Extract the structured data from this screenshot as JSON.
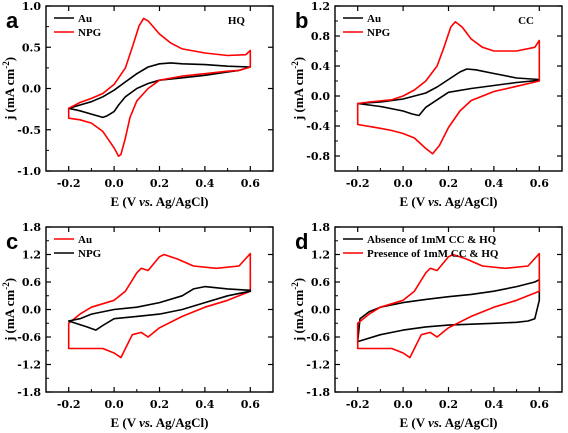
{
  "chart_data": [
    {
      "type": "line",
      "panel": "a",
      "corner_label": "HQ",
      "xlabel": "E (V vs. Ag/AgCl)",
      "ylabel": "j (mA cm-2)",
      "xlim": [
        -0.3,
        0.7
      ],
      "ylim": [
        -1.0,
        1.0
      ],
      "xticks": [
        -0.2,
        0.0,
        0.2,
        0.4,
        0.6
      ],
      "yticks": [
        -1.0,
        -0.5,
        0.0,
        0.5,
        1.0
      ],
      "x_tick_labels": [
        "-0.2",
        "0.0",
        "0.2",
        "0.4",
        "0.6"
      ],
      "y_tick_labels": [
        "-1.0",
        "-0.5",
        "0.0",
        "0.5",
        "1.0"
      ],
      "legend_position": "top-left",
      "series": [
        {
          "name": "Au",
          "color": "#000000",
          "points": [
            [
              -0.2,
              -0.24
            ],
            [
              -0.15,
              -0.2
            ],
            [
              -0.1,
              -0.16
            ],
            [
              -0.05,
              -0.1
            ],
            [
              0.0,
              -0.02
            ],
            [
              0.05,
              0.08
            ],
            [
              0.1,
              0.18
            ],
            [
              0.15,
              0.26
            ],
            [
              0.2,
              0.3
            ],
            [
              0.25,
              0.31
            ],
            [
              0.3,
              0.3
            ],
            [
              0.4,
              0.29
            ],
            [
              0.5,
              0.27
            ],
            [
              0.6,
              0.26
            ],
            [
              0.55,
              0.22
            ],
            [
              0.5,
              0.2
            ],
            [
              0.4,
              0.16
            ],
            [
              0.3,
              0.13
            ],
            [
              0.2,
              0.1
            ],
            [
              0.15,
              0.06
            ],
            [
              0.1,
              0.0
            ],
            [
              0.05,
              -0.1
            ],
            [
              0.02,
              -0.2
            ],
            [
              0.0,
              -0.28
            ],
            [
              -0.03,
              -0.33
            ],
            [
              -0.05,
              -0.35
            ],
            [
              -0.1,
              -0.31
            ],
            [
              -0.15,
              -0.27
            ],
            [
              -0.2,
              -0.24
            ]
          ]
        },
        {
          "name": "NPG",
          "color": "#ff0000",
          "points": [
            [
              -0.2,
              -0.36
            ],
            [
              -0.2,
              -0.24
            ],
            [
              -0.15,
              -0.17
            ],
            [
              -0.1,
              -0.12
            ],
            [
              -0.05,
              -0.06
            ],
            [
              0.0,
              0.05
            ],
            [
              0.05,
              0.25
            ],
            [
              0.08,
              0.5
            ],
            [
              0.11,
              0.76
            ],
            [
              0.13,
              0.85
            ],
            [
              0.15,
              0.82
            ],
            [
              0.2,
              0.66
            ],
            [
              0.25,
              0.55
            ],
            [
              0.3,
              0.48
            ],
            [
              0.4,
              0.43
            ],
            [
              0.5,
              0.4
            ],
            [
              0.58,
              0.41
            ],
            [
              0.6,
              0.46
            ],
            [
              0.6,
              0.26
            ],
            [
              0.55,
              0.22
            ],
            [
              0.5,
              0.21
            ],
            [
              0.4,
              0.18
            ],
            [
              0.3,
              0.15
            ],
            [
              0.2,
              0.1
            ],
            [
              0.15,
              0.0
            ],
            [
              0.1,
              -0.15
            ],
            [
              0.07,
              -0.35
            ],
            [
              0.05,
              -0.6
            ],
            [
              0.03,
              -0.8
            ],
            [
              0.02,
              -0.82
            ],
            [
              0.0,
              -0.72
            ],
            [
              -0.05,
              -0.52
            ],
            [
              -0.1,
              -0.42
            ],
            [
              -0.15,
              -0.38
            ],
            [
              -0.2,
              -0.36
            ]
          ]
        }
      ]
    },
    {
      "type": "line",
      "panel": "b",
      "corner_label": "CC",
      "xlabel": "E (V vs. Ag/AgCl)",
      "ylabel": "j (mA cm-2)",
      "xlim": [
        -0.3,
        0.7
      ],
      "ylim": [
        -1.0,
        1.2
      ],
      "xticks": [
        -0.2,
        0.0,
        0.2,
        0.4,
        0.6
      ],
      "yticks": [
        -0.8,
        -0.4,
        0.0,
        0.4,
        0.8,
        1.2
      ],
      "x_tick_labels": [
        "-0.2",
        "0.0",
        "0.2",
        "0.4",
        "0.6"
      ],
      "y_tick_labels": [
        "-0.8",
        "-0.4",
        "0.0",
        "0.4",
        "0.8",
        "1.2"
      ],
      "legend_position": "top-left",
      "series": [
        {
          "name": "Au",
          "color": "#000000",
          "points": [
            [
              -0.2,
              -0.1
            ],
            [
              -0.1,
              -0.08
            ],
            [
              0.0,
              -0.04
            ],
            [
              0.1,
              0.04
            ],
            [
              0.15,
              0.12
            ],
            [
              0.2,
              0.22
            ],
            [
              0.25,
              0.32
            ],
            [
              0.28,
              0.36
            ],
            [
              0.32,
              0.35
            ],
            [
              0.4,
              0.3
            ],
            [
              0.5,
              0.24
            ],
            [
              0.6,
              0.22
            ],
            [
              0.6,
              0.21
            ],
            [
              0.5,
              0.18
            ],
            [
              0.4,
              0.14
            ],
            [
              0.3,
              0.1
            ],
            [
              0.2,
              0.05
            ],
            [
              0.15,
              -0.05
            ],
            [
              0.1,
              -0.15
            ],
            [
              0.07,
              -0.26
            ],
            [
              0.04,
              -0.24
            ],
            [
              0.0,
              -0.2
            ],
            [
              -0.1,
              -0.14
            ],
            [
              -0.2,
              -0.1
            ]
          ]
        },
        {
          "name": "NPG",
          "color": "#ff0000",
          "points": [
            [
              -0.2,
              -0.38
            ],
            [
              -0.2,
              -0.1
            ],
            [
              -0.15,
              -0.08
            ],
            [
              -0.05,
              -0.05
            ],
            [
              0.0,
              0.0
            ],
            [
              0.05,
              0.08
            ],
            [
              0.1,
              0.2
            ],
            [
              0.15,
              0.4
            ],
            [
              0.18,
              0.65
            ],
            [
              0.21,
              0.92
            ],
            [
              0.23,
              0.99
            ],
            [
              0.26,
              0.92
            ],
            [
              0.3,
              0.76
            ],
            [
              0.35,
              0.65
            ],
            [
              0.4,
              0.6
            ],
            [
              0.5,
              0.6
            ],
            [
              0.58,
              0.65
            ],
            [
              0.6,
              0.74
            ],
            [
              0.6,
              0.2
            ],
            [
              0.5,
              0.13
            ],
            [
              0.4,
              0.06
            ],
            [
              0.3,
              -0.06
            ],
            [
              0.25,
              -0.2
            ],
            [
              0.2,
              -0.42
            ],
            [
              0.16,
              -0.66
            ],
            [
              0.13,
              -0.77
            ],
            [
              0.1,
              -0.7
            ],
            [
              0.05,
              -0.56
            ],
            [
              0.0,
              -0.5
            ],
            [
              -0.05,
              -0.46
            ],
            [
              -0.1,
              -0.43
            ],
            [
              -0.2,
              -0.38
            ]
          ]
        }
      ]
    },
    {
      "type": "line",
      "panel": "c",
      "corner_label": "",
      "xlabel": "E (V vs. Ag/AgCl)",
      "ylabel": "j (mA cm-2)",
      "xlim": [
        -0.3,
        0.7
      ],
      "ylim": [
        -1.8,
        1.8
      ],
      "xticks": [
        -0.2,
        0.0,
        0.2,
        0.4,
        0.6
      ],
      "yticks": [
        -1.8,
        -1.2,
        -0.6,
        0.0,
        0.6,
        1.2,
        1.8
      ],
      "x_tick_labels": [
        "-0.2",
        "0.0",
        "0.2",
        "0.4",
        "0.6"
      ],
      "y_tick_labels": [
        "-1.8",
        "-1.2",
        "-0.6",
        "0.0",
        "0.6",
        "1.2",
        "1.8"
      ],
      "legend_position": "top-left",
      "series": [
        {
          "name": "Au",
          "color": "#ff0000",
          "points": [
            [
              -0.2,
              -0.85
            ],
            [
              -0.2,
              -0.3
            ],
            [
              -0.15,
              -0.1
            ],
            [
              -0.1,
              0.05
            ],
            [
              0.0,
              0.2
            ],
            [
              0.05,
              0.4
            ],
            [
              0.1,
              0.8
            ],
            [
              0.12,
              0.9
            ],
            [
              0.15,
              0.85
            ],
            [
              0.2,
              1.15
            ],
            [
              0.22,
              1.2
            ],
            [
              0.28,
              1.1
            ],
            [
              0.35,
              0.95
            ],
            [
              0.45,
              0.9
            ],
            [
              0.55,
              0.95
            ],
            [
              0.6,
              1.22
            ],
            [
              0.6,
              0.4
            ],
            [
              0.5,
              0.2
            ],
            [
              0.4,
              0.05
            ],
            [
              0.3,
              -0.15
            ],
            [
              0.2,
              -0.4
            ],
            [
              0.15,
              -0.6
            ],
            [
              0.12,
              -0.5
            ],
            [
              0.08,
              -0.55
            ],
            [
              0.05,
              -0.85
            ],
            [
              0.03,
              -1.05
            ],
            [
              0.0,
              -0.95
            ],
            [
              -0.05,
              -0.85
            ],
            [
              -0.1,
              -0.85
            ],
            [
              -0.2,
              -0.85
            ]
          ]
        },
        {
          "name": "NPG",
          "color": "#000000",
          "points": [
            [
              -0.2,
              -0.25
            ],
            [
              -0.15,
              -0.2
            ],
            [
              -0.1,
              -0.1
            ],
            [
              0.0,
              0.0
            ],
            [
              0.1,
              0.05
            ],
            [
              0.2,
              0.15
            ],
            [
              0.3,
              0.3
            ],
            [
              0.35,
              0.45
            ],
            [
              0.4,
              0.5
            ],
            [
              0.5,
              0.45
            ],
            [
              0.6,
              0.42
            ],
            [
              0.6,
              0.4
            ],
            [
              0.5,
              0.3
            ],
            [
              0.4,
              0.15
            ],
            [
              0.3,
              0.0
            ],
            [
              0.2,
              -0.1
            ],
            [
              0.1,
              -0.15
            ],
            [
              0.0,
              -0.2
            ],
            [
              -0.05,
              -0.35
            ],
            [
              -0.08,
              -0.45
            ],
            [
              -0.12,
              -0.38
            ],
            [
              -0.2,
              -0.25
            ]
          ]
        }
      ]
    },
    {
      "type": "line",
      "panel": "d",
      "corner_label": "",
      "xlabel": "E (V vs. Ag/AgCl)",
      "ylabel": "j (mA cm-2)",
      "xlim": [
        -0.3,
        0.7
      ],
      "ylim": [
        -1.8,
        1.8
      ],
      "xticks": [
        -0.2,
        0.0,
        0.2,
        0.4,
        0.6
      ],
      "yticks": [
        -1.8,
        -1.2,
        -0.6,
        0.0,
        0.6,
        1.2,
        1.8
      ],
      "x_tick_labels": [
        "-0.2",
        "0.0",
        "0.2",
        "0.4",
        "0.6"
      ],
      "y_tick_labels": [
        "-1.8",
        "-1.2",
        "-0.6",
        "0.0",
        "0.6",
        "1.2",
        "1.8"
      ],
      "legend_position": "top-left",
      "series": [
        {
          "name": "Absence of 1mM CC & HQ",
          "color": "#000000",
          "points": [
            [
              -0.2,
              -0.7
            ],
            [
              -0.19,
              -0.2
            ],
            [
              -0.15,
              -0.05
            ],
            [
              -0.1,
              0.05
            ],
            [
              0.0,
              0.15
            ],
            [
              0.1,
              0.22
            ],
            [
              0.2,
              0.28
            ],
            [
              0.3,
              0.33
            ],
            [
              0.4,
              0.4
            ],
            [
              0.5,
              0.5
            ],
            [
              0.58,
              0.6
            ],
            [
              0.6,
              0.65
            ],
            [
              0.6,
              0.2
            ],
            [
              0.58,
              -0.2
            ],
            [
              0.55,
              -0.25
            ],
            [
              0.5,
              -0.28
            ],
            [
              0.4,
              -0.3
            ],
            [
              0.3,
              -0.32
            ],
            [
              0.2,
              -0.34
            ],
            [
              0.1,
              -0.38
            ],
            [
              0.0,
              -0.45
            ],
            [
              -0.1,
              -0.55
            ],
            [
              -0.2,
              -0.7
            ]
          ]
        },
        {
          "name": "Presence of 1mM CC & HQ",
          "color": "#ff0000",
          "points": [
            [
              -0.2,
              -0.85
            ],
            [
              -0.2,
              -0.3
            ],
            [
              -0.15,
              -0.1
            ],
            [
              -0.1,
              0.05
            ],
            [
              0.0,
              0.2
            ],
            [
              0.05,
              0.4
            ],
            [
              0.1,
              0.8
            ],
            [
              0.12,
              0.9
            ],
            [
              0.15,
              0.85
            ],
            [
              0.2,
              1.15
            ],
            [
              0.22,
              1.2
            ],
            [
              0.28,
              1.1
            ],
            [
              0.35,
              0.95
            ],
            [
              0.45,
              0.9
            ],
            [
              0.55,
              0.95
            ],
            [
              0.6,
              1.22
            ],
            [
              0.6,
              0.4
            ],
            [
              0.5,
              0.2
            ],
            [
              0.4,
              0.05
            ],
            [
              0.3,
              -0.15
            ],
            [
              0.2,
              -0.4
            ],
            [
              0.15,
              -0.6
            ],
            [
              0.12,
              -0.5
            ],
            [
              0.08,
              -0.55
            ],
            [
              0.05,
              -0.85
            ],
            [
              0.03,
              -1.05
            ],
            [
              0.0,
              -0.95
            ],
            [
              -0.05,
              -0.85
            ],
            [
              -0.1,
              -0.85
            ],
            [
              -0.2,
              -0.85
            ]
          ]
        }
      ]
    }
  ]
}
